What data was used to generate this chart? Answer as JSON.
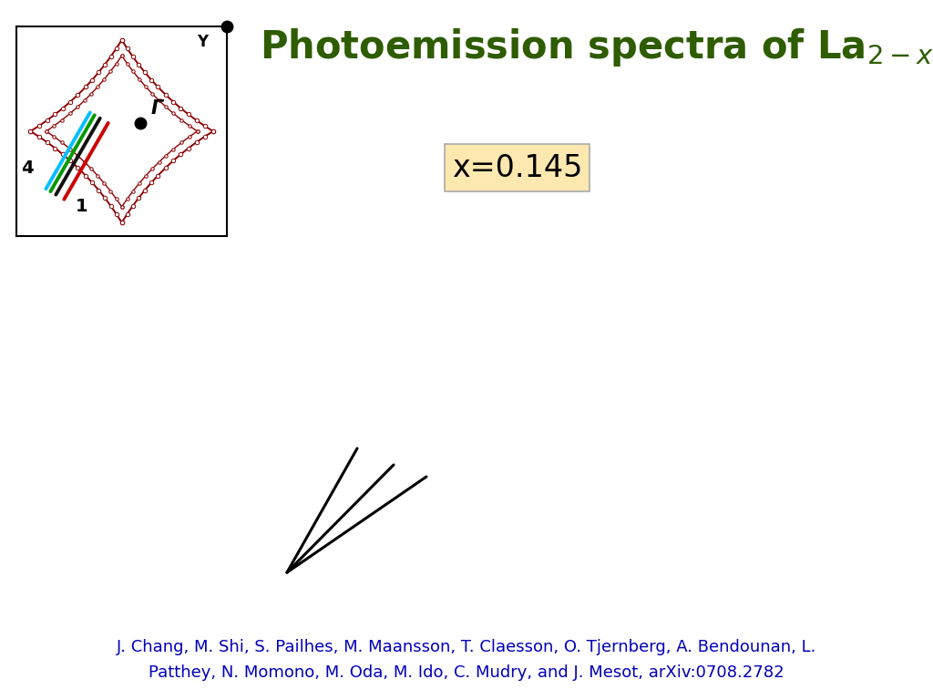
{
  "title_color": "#2e5c00",
  "title_fontsize": 30,
  "xval_label": "x=0.145",
  "xval_box_color": "#fde8b0",
  "xval_fontsize": 24,
  "bg_color": "#ffffff",
  "gamma_label": "Γ",
  "Y_label": "Y",
  "cut_label_4": "4",
  "cut_label_1": "1",
  "dark_red": "#8B0000",
  "cut_colors": [
    "#00bfff",
    "#009900",
    "#111111",
    "#cc0000"
  ],
  "cut_lw": [
    2.8,
    2.8,
    2.8,
    2.8
  ],
  "author_fontsize": 13,
  "author_color": "#0000bb"
}
